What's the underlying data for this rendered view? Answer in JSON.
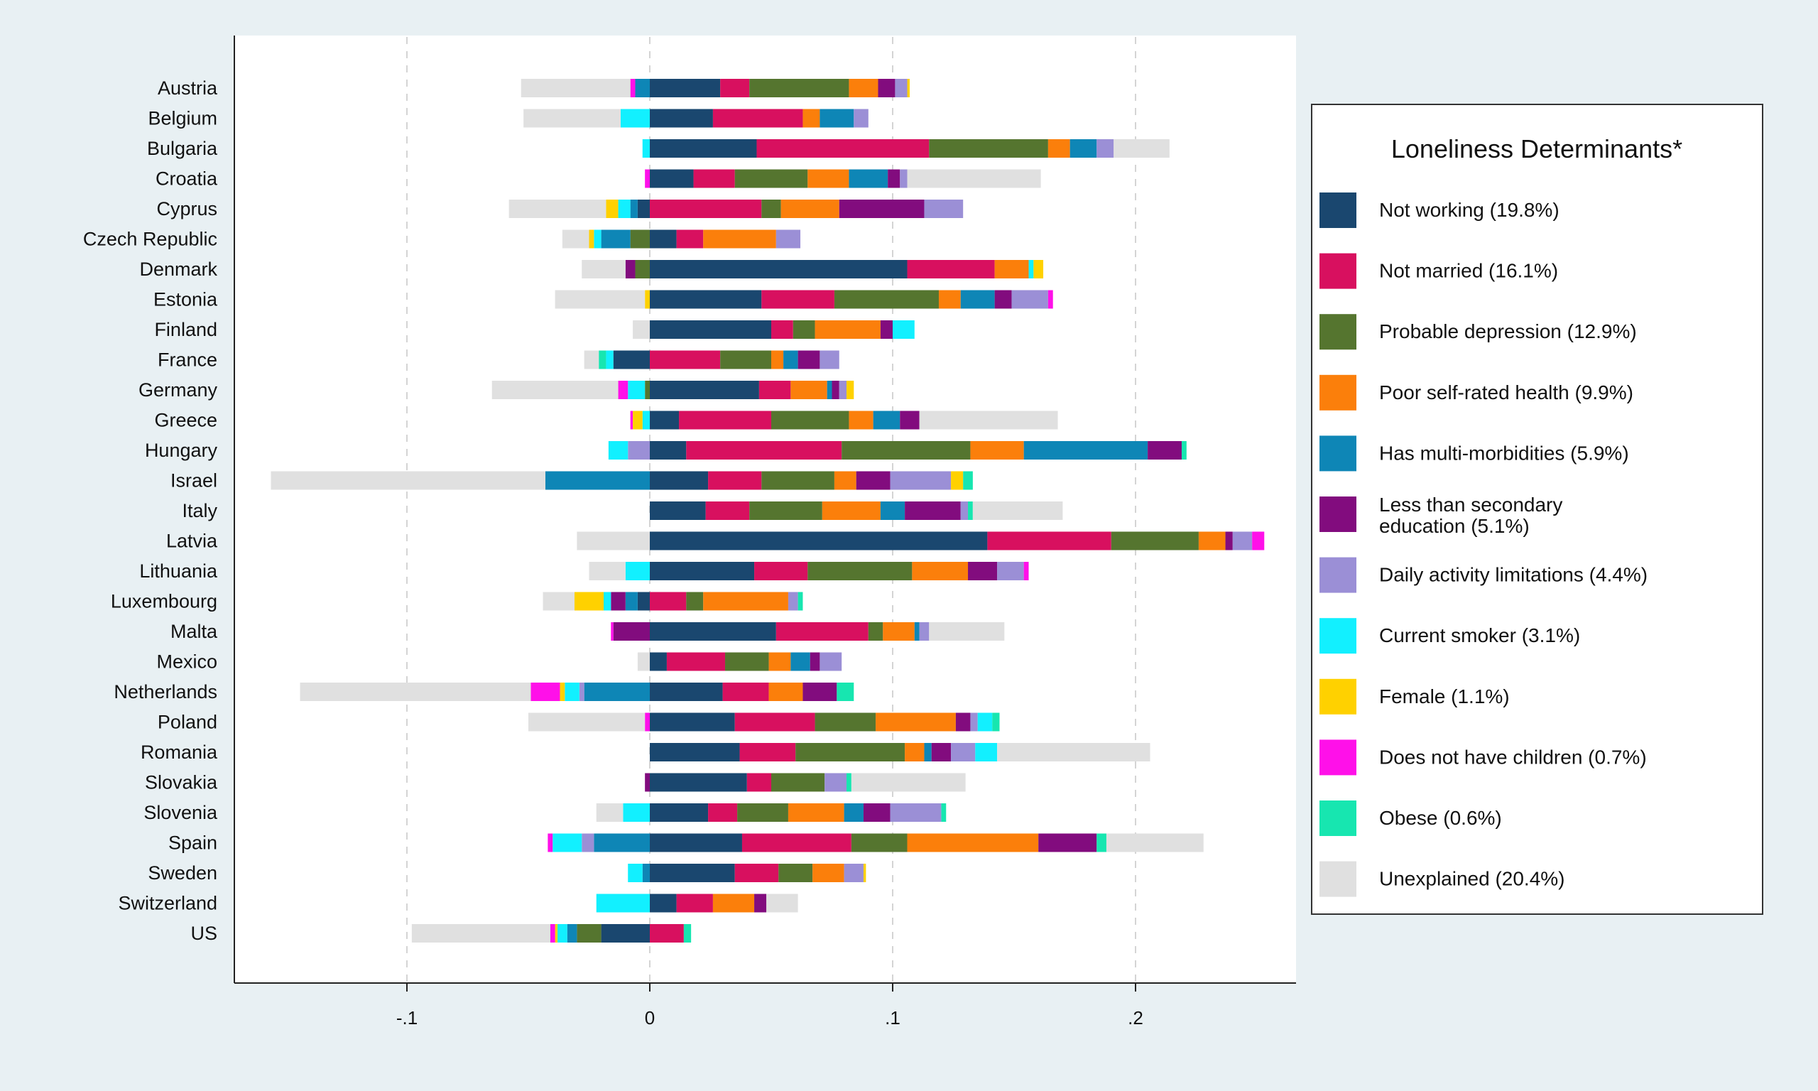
{
  "chart_data": {
    "type": "bar",
    "orientation": "horizontal",
    "stacked": true,
    "xlim": [
      -0.18,
      0.265
    ],
    "x_ticks": [
      -0.1,
      0,
      0.1,
      0.2
    ],
    "x_tick_labels": [
      "-.1",
      "0",
      ".1",
      ".2"
    ],
    "grid": "vertical dashed at ticks",
    "legend_position": "right",
    "legend_title": "Loneliness Determinants*",
    "categories": [
      "Austria",
      "Belgium",
      "Bulgaria",
      "Croatia",
      "Cyprus",
      "Czech Republic",
      "Denmark",
      "Estonia",
      "Finland",
      "France",
      "Germany",
      "Greece",
      "Hungary",
      "Israel",
      "Italy",
      "Latvia",
      "Lithuania",
      "Luxembourg",
      "Malta",
      "Mexico",
      "Netherlands",
      "Poland",
      "Romania",
      "Slovakia",
      "Slovenia",
      "Spain",
      "Sweden",
      "Switzerland",
      "US"
    ],
    "series": [
      {
        "name": "Not working (19.8%)",
        "color": "#1a476f",
        "values": [
          0.029,
          0.026,
          0.044,
          0.018,
          -0.005,
          0.011,
          0.106,
          0.046,
          0.05,
          -0.015,
          0.045,
          0.012,
          0.015,
          0.024,
          0.023,
          0.139,
          0.043,
          -0.005,
          0.052,
          0.007,
          0.03,
          0.035,
          0.037,
          0.04,
          0.024,
          0.038,
          0.035,
          0.011,
          -0.02
        ]
      },
      {
        "name": "Not married (16.1%)",
        "color": "#d8105f",
        "values": [
          0.012,
          0.037,
          0.071,
          0.017,
          0.046,
          0.011,
          0.036,
          0.03,
          0.009,
          0.029,
          0.013,
          0.038,
          0.064,
          0.022,
          0.018,
          0.051,
          0.022,
          0.015,
          0.038,
          0.024,
          0.019,
          0.033,
          0.023,
          0.01,
          0.012,
          0.045,
          0.018,
          0.015,
          0.014
        ]
      },
      {
        "name": "Probable depression (12.9%)",
        "color": "#55752f",
        "values": [
          0.041,
          0.0,
          0.049,
          0.03,
          0.008,
          -0.008,
          -0.006,
          0.043,
          0.009,
          0.021,
          -0.002,
          0.032,
          0.053,
          0.03,
          0.03,
          0.036,
          0.043,
          0.007,
          0.006,
          0.018,
          0.0,
          0.025,
          0.045,
          0.022,
          0.021,
          0.023,
          0.014,
          0.0,
          -0.01
        ]
      },
      {
        "name": "Poor self-rated health (9.9%)",
        "color": "#fb7f0b",
        "values": [
          0.012,
          0.007,
          0.009,
          0.017,
          0.024,
          0.03,
          0.014,
          0.009,
          0.027,
          0.005,
          0.015,
          0.01,
          0.022,
          0.009,
          0.024,
          0.011,
          0.023,
          0.035,
          0.013,
          0.009,
          0.014,
          0.033,
          0.008,
          0.0,
          0.023,
          0.054,
          0.013,
          0.017,
          0.0
        ]
      },
      {
        "name": "Has multi-morbidities (5.9%)",
        "color": "#0e86b6",
        "values": [
          -0.006,
          0.014,
          0.011,
          0.016,
          -0.003,
          -0.012,
          0.0,
          0.014,
          0.0,
          0.006,
          0.002,
          0.011,
          0.051,
          -0.043,
          0.01,
          0.0,
          0.0,
          -0.005,
          0.002,
          0.008,
          -0.027,
          0.0,
          0.003,
          0.0,
          0.008,
          -0.023,
          -0.003,
          0.0,
          -0.004
        ]
      },
      {
        "name": "Less than secondary education (5.1%)",
        "color": "#820c7e",
        "values": [
          0.007,
          0.0,
          0.0,
          0.005,
          0.035,
          0.0,
          -0.004,
          0.007,
          0.005,
          0.009,
          0.003,
          0.008,
          0.014,
          0.014,
          0.023,
          0.003,
          0.012,
          -0.006,
          -0.015,
          0.004,
          0.014,
          0.006,
          0.008,
          -0.002,
          0.011,
          0.024,
          0.0,
          0.005,
          0.0
        ]
      },
      {
        "name": "Daily activity limitations (4.4%)",
        "color": "#9b8fd6",
        "values": [
          0.005,
          0.006,
          0.007,
          0.003,
          0.016,
          0.01,
          0.0,
          0.015,
          0.0,
          0.008,
          0.003,
          0.0,
          -0.009,
          0.025,
          0.003,
          0.008,
          0.011,
          0.004,
          0.004,
          0.009,
          -0.002,
          0.003,
          0.01,
          0.009,
          0.021,
          -0.005,
          0.008,
          0.0,
          0.0
        ]
      },
      {
        "name": "Current smoker (3.1%)",
        "color": "#12f0ff",
        "values": [
          0.0,
          -0.012,
          -0.003,
          0.0,
          -0.005,
          -0.003,
          0.002,
          0.0,
          0.009,
          -0.003,
          -0.007,
          -0.003,
          -0.008,
          0.0,
          0.0,
          0.0,
          -0.01,
          -0.003,
          0.0,
          0.0,
          -0.006,
          0.006,
          0.009,
          0.0,
          -0.011,
          -0.012,
          -0.006,
          -0.022,
          -0.004
        ]
      },
      {
        "name": "Female (1.1%)",
        "color": "#ffd100",
        "values": [
          0.001,
          0.0,
          0.0,
          0.0,
          -0.005,
          -0.002,
          0.004,
          -0.002,
          0.0,
          0.0,
          0.003,
          -0.004,
          0.0,
          0.005,
          0.0,
          0.0,
          0.0,
          -0.012,
          0.0,
          0.0,
          -0.002,
          0.0,
          0.0,
          0.0,
          0.0,
          0.0,
          0.001,
          0.0,
          -0.001
        ]
      },
      {
        "name": "Does not have children (0.7%)",
        "color": "#ff10e9",
        "values": [
          -0.002,
          0.0,
          0.0,
          -0.002,
          0.0,
          0.0,
          0.0,
          0.002,
          0.0,
          0.0,
          -0.004,
          -0.001,
          0.0,
          0.0,
          0.0,
          0.005,
          0.002,
          0.0,
          -0.001,
          0.0,
          -0.012,
          -0.002,
          0.0,
          0.0,
          0.0,
          -0.002,
          0.0,
          0.0,
          -0.002
        ]
      },
      {
        "name": "Obese (0.6%)",
        "color": "#17e6b0",
        "values": [
          0.0,
          0.0,
          0.0,
          0.0,
          0.0,
          0.0,
          0.0,
          0.0,
          0.0,
          -0.003,
          0.0,
          0.0,
          0.002,
          0.004,
          0.002,
          0.0,
          0.0,
          0.002,
          0.0,
          0.0,
          0.007,
          0.003,
          0.0,
          0.002,
          0.002,
          0.004,
          0.0,
          0.0,
          0.003
        ]
      },
      {
        "name": "Unexplained (20.4%)",
        "color": "#e0e0e0",
        "values": [
          -0.045,
          -0.04,
          0.023,
          0.055,
          -0.04,
          -0.011,
          -0.018,
          -0.037,
          -0.007,
          -0.006,
          -0.052,
          0.057,
          0.0,
          -0.113,
          0.037,
          -0.03,
          -0.015,
          -0.013,
          0.031,
          -0.005,
          -0.095,
          -0.048,
          0.063,
          0.047,
          -0.011,
          0.04,
          0.0,
          0.013,
          -0.057
        ]
      }
    ]
  }
}
